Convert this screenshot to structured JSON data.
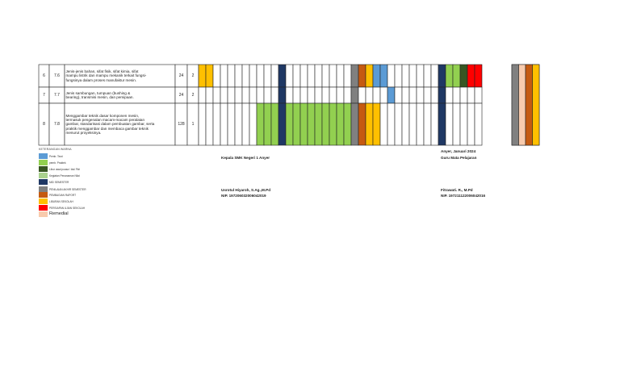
{
  "rows": [
    {
      "no": "6",
      "kd": "7.6",
      "desc": [
        "Jenis-jenis bahan, sifat fisik, sifat kimia, sifat",
        "mampu listrik dan mampu mekanik terkait fungsi-",
        "fungsinya dalam proses manufaktur mesin."
      ],
      "jp": "24",
      "mg": "2",
      "cells": [
        "Y",
        "Y",
        "",
        "",
        "",
        "",
        "",
        "",
        "",
        "",
        "",
        "N",
        "",
        "",
        "",
        "",
        "",
        "",
        "",
        "",
        "",
        "G",
        "O",
        "Y",
        "B",
        "B",
        "",
        "",
        "",
        "",
        "",
        "",
        "",
        "N",
        "L",
        "L",
        "D",
        "R",
        "R"
      ]
    },
    {
      "no": "7",
      "kd": "7.7",
      "desc": [
        "Jenis sambungan, tumpuan (bushing &",
        "bearing), transmisi mesin, dan pemipaan."
      ],
      "jp": "24",
      "mg": "2",
      "cells": [
        "",
        "",
        "",
        "",
        "",
        "",
        "",
        "",
        "",
        "",
        "",
        "N",
        "",
        "",
        "",
        "",
        "",
        "",
        "",
        "",
        "",
        "G",
        "",
        "",
        "",
        "",
        "B",
        "",
        "",
        "",
        "",
        "",
        "",
        "N",
        "",
        "",
        "",
        "",
        ""
      ]
    },
    {
      "no": "8",
      "kd": "7.8",
      "desc": [
        "Menggambar teknik dasar komponen mesin,",
        "termasuk pengenalan macam-macam peralatan",
        "gambar, standarisasi dalam pembuatan gambar, serta",
        "praktik menggambar dan membaca gambar teknik",
        "menurut proyeksinya."
      ],
      "jp": "128",
      "mg": "1",
      "cells": [
        "",
        "",
        "",
        "",
        "",
        "",
        "",
        "",
        "L",
        "L",
        "L",
        "N",
        "L",
        "L",
        "L",
        "L",
        "L",
        "L",
        "L",
        "L",
        "L",
        "G",
        "O",
        "Y",
        "Y",
        "",
        "",
        "",
        "",
        "",
        "",
        "",
        "",
        "N",
        "",
        "",
        "",
        "",
        ""
      ]
    }
  ],
  "right_block": [
    "G",
    "S",
    "O",
    "Y"
  ],
  "legend": {
    "title": "KETERANGAN WARNA",
    "items": [
      {
        "label": "Pemb. Teori",
        "color": "#5b9bd5"
      },
      {
        "label": "pemb. Praktek",
        "color": "#92d050"
      },
      {
        "label": "Libur awal puasa / Idul Fitri",
        "color": "#375623"
      },
      {
        "label": "Kegiatan Penanaman Nilai",
        "color": "#a9d18e"
      },
      {
        "label": "MID SEMESTER",
        "color": "#1f3864"
      },
      {
        "label": "PENILAIAN AKHIR SEMESTER",
        "color": "#808080"
      },
      {
        "label": "PEMBAGIAN RAPORT",
        "color": "#c55a11"
      },
      {
        "label": "LIBURAN SEKOLAH",
        "color": "#ffc000"
      },
      {
        "label": "PERSIAPAN UJIAN SEKOLAH",
        "color": "#ff0000"
      },
      {
        "label": "Remedial",
        "color": "#f8cbad"
      }
    ]
  },
  "signature": {
    "left_title": "Kepala SMK Negeri 1 Anyer",
    "left_name": "Usrotul Hiyaroh, S.Ag.,M.Pd",
    "left_nip": "NIP. 197206032006042019",
    "right_place_date": "Anyer,  Januari 2024",
    "right_title": "Guru Mata Pelajaran",
    "right_name": "Fitrawati. R., M.Pd",
    "right_nip": "NIP. 197211122006042016"
  },
  "colors": {
    "Y": "#ffc000",
    "N": "#1f3864",
    "G": "#808080",
    "O": "#c55a11",
    "B": "#5b9bd5",
    "L": "#92d050",
    "D": "#375623",
    "R": "#ff0000",
    "K": "#a9d18e",
    "S": "#f8cbad"
  }
}
